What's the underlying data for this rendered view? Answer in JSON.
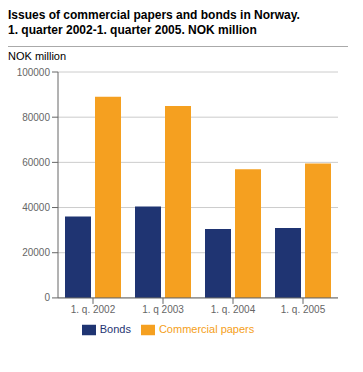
{
  "chart_data": {
    "type": "bar",
    "title": "Issues of commercial papers and bonds in Norway.",
    "subtitle": "1. quarter 2002-1. quarter 2005. NOK million",
    "ylabel": "NOK million",
    "categories": [
      "1. q. 2002",
      "1. q 2003",
      "1. q. 2004",
      "1. q. 2005"
    ],
    "series": [
      {
        "name": "Bonds",
        "color": "#1f3472",
        "values": [
          36000,
          40500,
          30500,
          31000
        ]
      },
      {
        "name": "Commercial papers",
        "color": "#f5a020",
        "values": [
          89000,
          85000,
          57000,
          59500
        ]
      }
    ],
    "ylim": [
      0,
      100000
    ],
    "yticks": [
      0,
      20000,
      40000,
      60000,
      80000,
      100000
    ],
    "grid": true,
    "legend": "bottom"
  }
}
